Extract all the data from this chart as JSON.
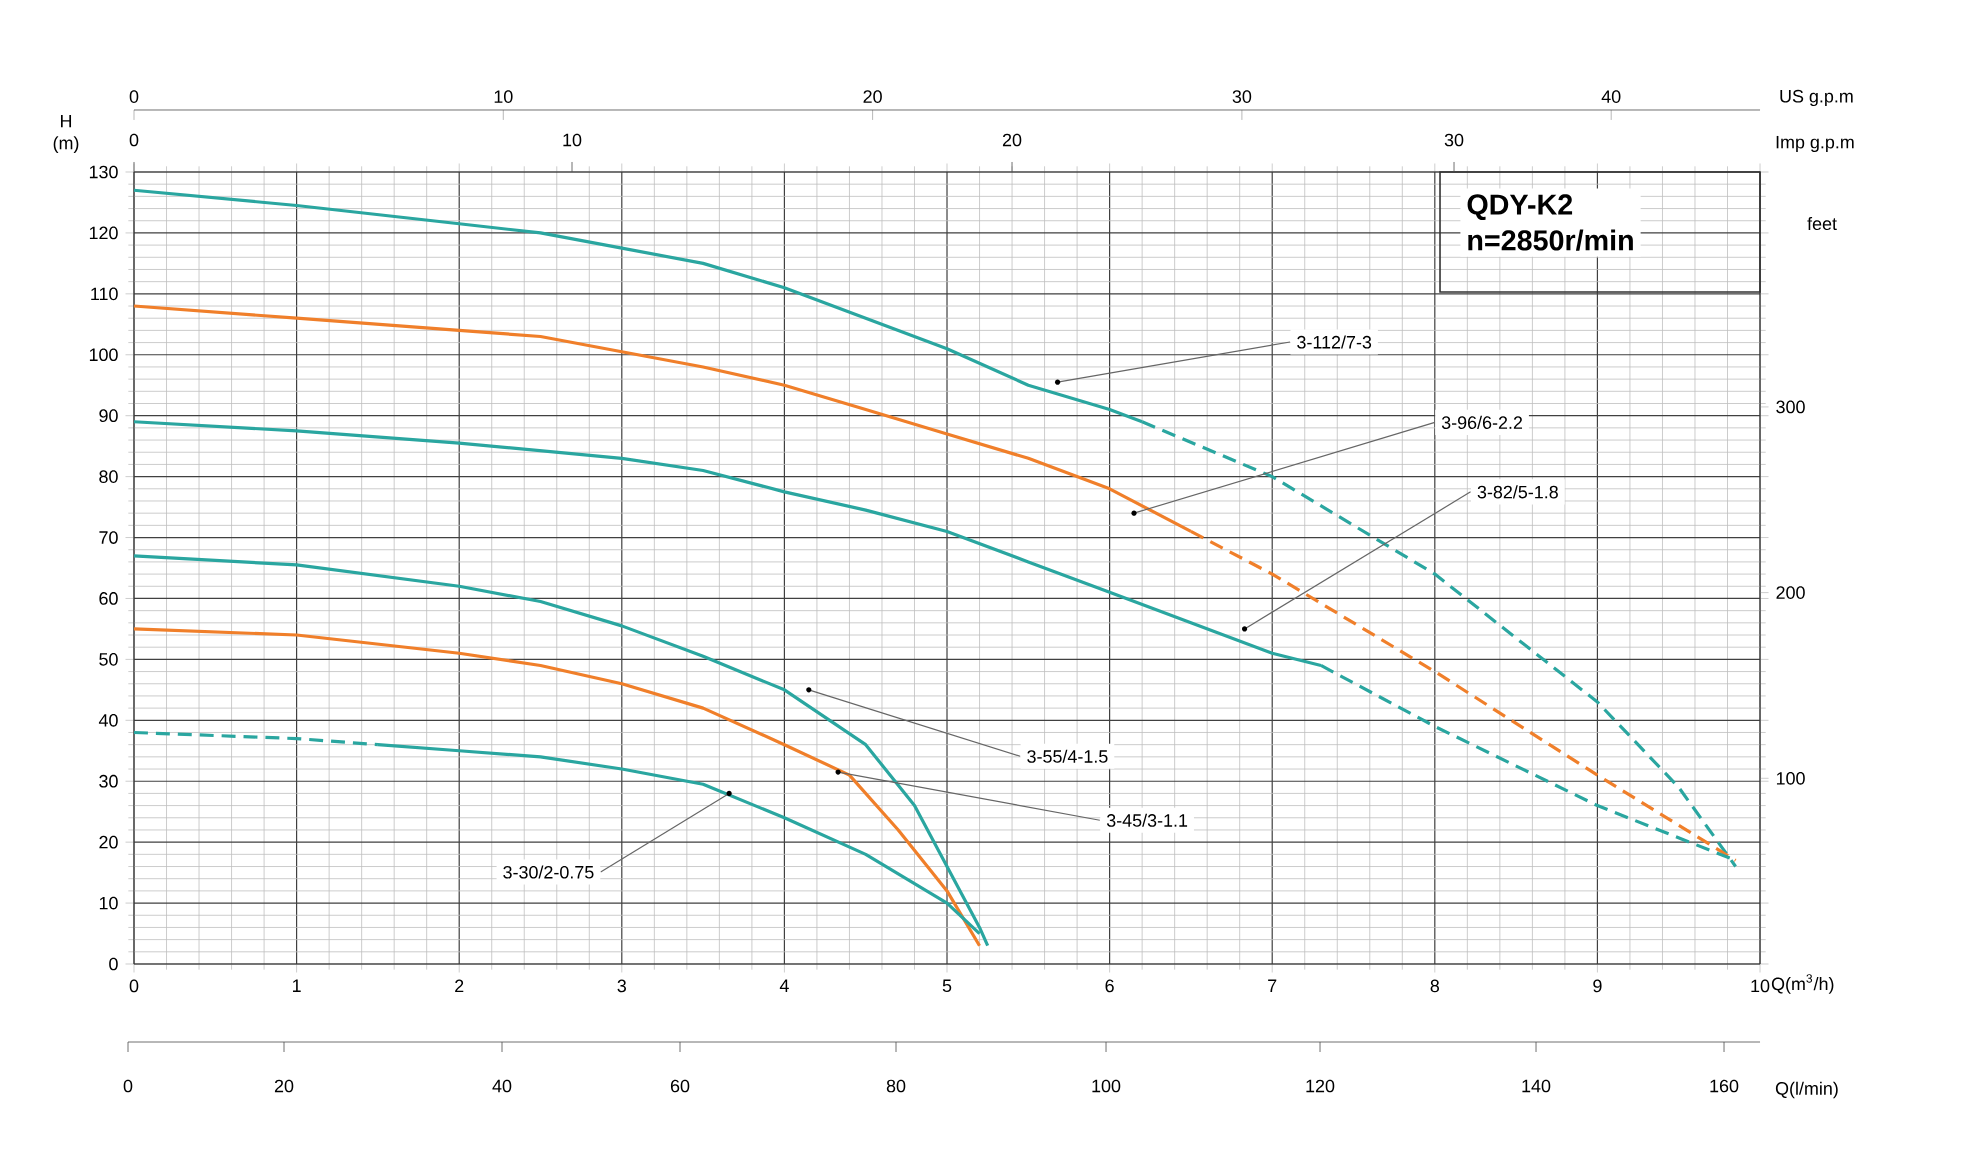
{
  "chart_data": {
    "type": "line",
    "title": "QDY-K2",
    "subtitle": "n=2850r/min",
    "xlabel": "Q(m$^{3}$/h)",
    "ylabel": "H (m)",
    "y2label": "feet",
    "x2label": "US g.p.m",
    "xlim": [
      0,
      10
    ],
    "xticks": [
      0,
      1,
      2,
      3,
      4,
      5,
      6,
      7,
      8,
      9,
      10
    ],
    "ylim": [
      0,
      130
    ],
    "yticks": [
      0,
      10,
      20,
      30,
      40,
      50,
      60,
      70,
      80,
      90,
      100,
      110,
      120,
      130
    ],
    "y2lim": [
      0,
      426.5
    ],
    "y2ticks": [
      100,
      200,
      300
    ],
    "x2lim": [
      0,
      44.03
    ],
    "x2ticks": [
      0,
      10,
      20,
      30,
      40
    ],
    "grid": true,
    "series": [
      {
        "color": "#2aa6a0",
        "line_style": "solid",
        "x": [
          0,
          1,
          2,
          2.5,
          3,
          3.5,
          4,
          4.5,
          5,
          5.5,
          6,
          6.2
        ],
        "values": [
          127,
          124.5,
          121.5,
          120,
          117.5,
          115,
          111,
          106,
          101,
          95,
          91,
          89
        ]
      },
      {
        "color": "#2aa6a0",
        "line_style": "dashed",
        "x": [
          6.2,
          7,
          8,
          9,
          9.5,
          9.85
        ],
        "values": [
          89,
          80,
          64,
          43,
          29,
          16
        ]
      },
      {
        "color": "#f07f2a",
        "line_style": "solid",
        "x": [
          0,
          1,
          2,
          2.5,
          3,
          3.5,
          4,
          4.5,
          5,
          5.5,
          6,
          6.5
        ],
        "values": [
          108,
          106,
          104,
          103,
          100.5,
          98,
          95,
          91,
          87,
          83,
          78,
          71
        ]
      },
      {
        "color": "#f07f2a",
        "line_style": "dashed",
        "x": [
          6.5,
          7,
          8,
          9,
          9.85
        ],
        "values": [
          71,
          64,
          48,
          31,
          17
        ]
      },
      {
        "color": "#2aa6a0",
        "line_style": "solid",
        "x": [
          0,
          1,
          2,
          3,
          3.5,
          4,
          4.5,
          5,
          5.5,
          6,
          6.5,
          7,
          7.3
        ],
        "values": [
          89,
          87.5,
          85.5,
          83,
          81,
          77.5,
          74.5,
          71,
          66,
          61,
          56,
          51,
          49
        ]
      },
      {
        "color": "#2aa6a0",
        "line_style": "dashed",
        "x": [
          7.3,
          8,
          9,
          9.85
        ],
        "values": [
          49,
          39,
          26,
          17
        ]
      },
      {
        "color": "#2aa6a0",
        "line_style": "solid",
        "x": [
          0,
          1,
          2,
          2.5,
          3,
          3.5,
          4,
          4.5,
          4.8,
          5,
          5.2,
          5.25
        ],
        "values": [
          67,
          65.5,
          62,
          59.5,
          55.5,
          50.5,
          45,
          36,
          26,
          16,
          6,
          3
        ]
      },
      {
        "color": "#f07f2a",
        "line_style": "solid",
        "x": [
          0,
          1,
          2,
          2.5,
          3,
          3.5,
          4,
          4.4,
          4.7,
          5,
          5.2
        ],
        "values": [
          55,
          54,
          51,
          49,
          46,
          42,
          36,
          31,
          22,
          12,
          3
        ]
      },
      {
        "color": "#2aa6a0",
        "line_style": "dashed",
        "x": [
          0,
          1,
          1.5
        ],
        "values": [
          38,
          37,
          36
        ]
      },
      {
        "color": "#2aa6a0",
        "line_style": "solid",
        "x": [
          1.5,
          2,
          2.5,
          3,
          3.5,
          4,
          4.5,
          5,
          5.2
        ],
        "values": [
          36,
          35,
          34,
          32,
          29.5,
          24,
          18,
          10,
          5
        ]
      }
    ],
    "annotations": [
      {
        "text": "3-112/7-3",
        "x": 5.68,
        "y": 95.5
      },
      {
        "text": "3-96/6-2.2",
        "x": 6.15,
        "y": 74
      },
      {
        "text": "3-82/5-1.8",
        "x": 6.83,
        "y": 55
      },
      {
        "text": "3-55/4-1.5",
        "x": 4.15,
        "y": 45
      },
      {
        "text": "3-45/3-1.1",
        "x": 4.33,
        "y": 31.5
      },
      {
        "text": "3-30/2-0.75",
        "x": 3.66,
        "y": 28
      },
      "0",
      "10",
      "20",
      "30",
      "Imp g.p.m",
      "0",
      "20",
      "40",
      "60",
      "80",
      "100",
      "120",
      "140",
      "160",
      "Q(l/min)"
    ]
  }
}
